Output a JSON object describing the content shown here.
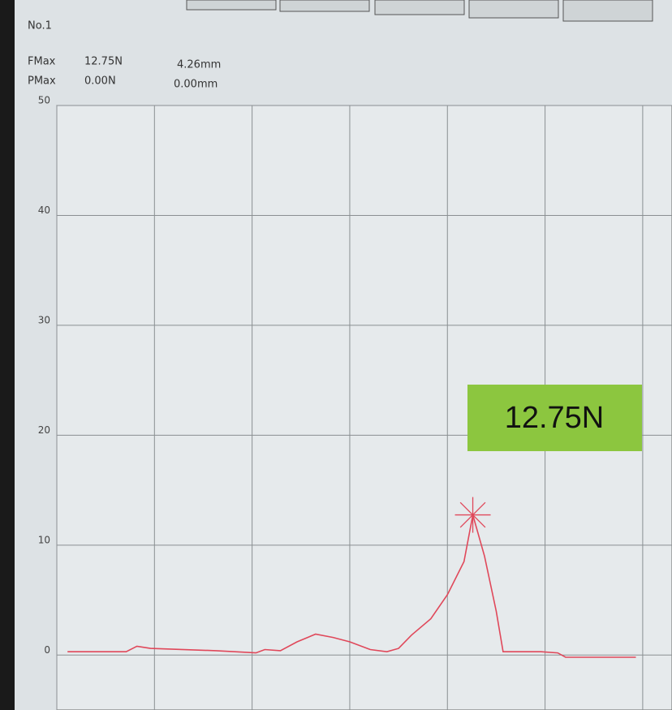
{
  "header": {
    "id": "No.1",
    "rows": [
      [
        "FMax",
        "12.75N",
        "4.26mm"
      ],
      [
        "PMax",
        "0.00N",
        "0.00mm"
      ]
    ]
  },
  "chart_data": {
    "type": "line",
    "x": [
      0.11,
      0.71,
      0.82,
      0.96,
      1.63,
      2.04,
      2.13,
      2.29,
      2.46,
      2.65,
      2.83,
      3.0,
      3.21,
      3.38,
      3.5,
      3.63,
      3.83,
      4.0,
      4.17,
      4.26,
      4.38,
      4.5,
      4.57,
      4.96,
      5.13,
      5.21,
      5.93
    ],
    "series": [
      {
        "color": "#e0485a",
        "values": [
          0.3,
          0.3,
          0.8,
          0.6,
          0.4,
          0.2,
          0.5,
          0.4,
          1.2,
          1.9,
          1.6,
          1.2,
          0.5,
          0.3,
          0.6,
          1.8,
          3.3,
          5.5,
          8.5,
          12.75,
          9,
          4,
          0.3,
          0.3,
          0.2,
          -0.2,
          -0.2
        ]
      }
    ],
    "xlim": [
      0,
      6.3
    ],
    "xticks": [
      0,
      1,
      2,
      3,
      4,
      5,
      6
    ],
    "show_xtick_labels": false,
    "ylim": [
      -5,
      50
    ],
    "yticks": [
      0,
      10,
      20,
      30,
      40,
      50
    ],
    "grid": true,
    "peak_marker": 19,
    "annotation": {
      "text": "12.75N",
      "color": "#8cc63f"
    }
  }
}
